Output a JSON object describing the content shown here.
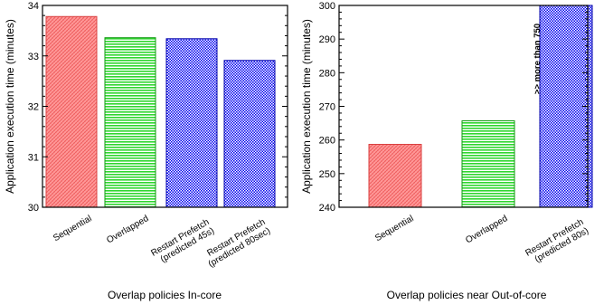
{
  "chart_data": [
    {
      "type": "bar",
      "title": "",
      "xlabel": "Overlap policies In-core",
      "ylabel": "Application execution time (minutes)",
      "ylim": [
        30,
        34
      ],
      "yticks": [
        30,
        31,
        32,
        33,
        34
      ],
      "grid": false,
      "categories": [
        "Sequential",
        "Overlapped",
        "Restart Prefetch\n(predicted 45s)",
        "Restart Prefetch\n(predicted 80sec)"
      ],
      "values": [
        33.78,
        33.36,
        33.34,
        32.91
      ],
      "fills": [
        "red-crosshatch",
        "green-hstripes",
        "blue-checker",
        "blue-checker"
      ],
      "annotations": []
    },
    {
      "type": "bar",
      "title": "",
      "xlabel": "Overlap policies near Out-of-core",
      "ylabel": "Application execution time (minutes)",
      "ylim": [
        240,
        300
      ],
      "yticks": [
        240,
        250,
        260,
        270,
        280,
        290,
        300
      ],
      "grid": false,
      "categories": [
        "Sequential",
        "Overlapped",
        "Restart Prefetch\n(predicted 80s)"
      ],
      "values": [
        258.7,
        265.7,
        300
      ],
      "fills": [
        "red-crosshatch",
        "green-hstripes",
        "blue-checker"
      ],
      "annotations": [
        ">> more than 750"
      ]
    }
  ],
  "colors": {
    "red": "#ff7b7b",
    "red_line": "#d94040",
    "green": "#33dd33",
    "blue": "#0000ee",
    "axis": "#000000"
  }
}
